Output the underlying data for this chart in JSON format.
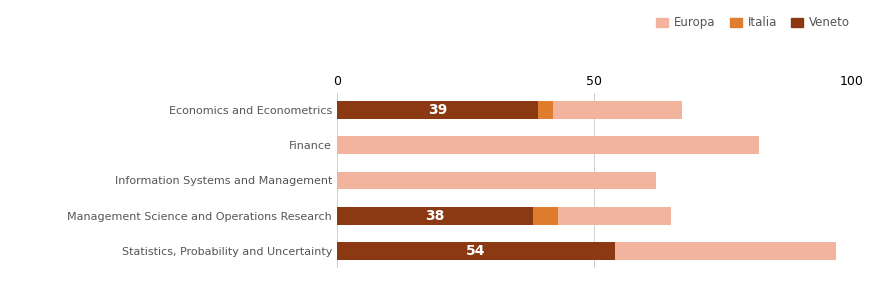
{
  "categories": [
    "Statistics, Probability and Uncertainty",
    "Management Science and Operations Research",
    "Information Systems and Management",
    "Finance",
    "Economics and Econometrics"
  ],
  "europa_values": [
    97,
    65,
    62,
    82,
    67
  ],
  "italia_values": [
    0,
    5,
    0,
    0,
    3
  ],
  "veneto_values": [
    54,
    38,
    0,
    0,
    39
  ],
  "veneto_labels": [
    "54",
    "38",
    "",
    "",
    "39"
  ],
  "color_europa": "#f2b49e",
  "color_italia": "#e07c2e",
  "color_veneto": "#8b3912",
  "legend_labels": [
    "Europa",
    "Italia",
    "Veneto"
  ],
  "xlim": [
    0,
    100
  ],
  "xticks": [
    0,
    50,
    100
  ],
  "background_color": "#ffffff",
  "bar_area_color": "#ffffff",
  "grid_color": "#d0d0d0",
  "label_color": "#555555",
  "label_fontsize": 8.0,
  "tick_fontsize": 9.0,
  "legend_fontsize": 8.5,
  "bar_height": 0.5,
  "bar_label_fontsize": 10
}
